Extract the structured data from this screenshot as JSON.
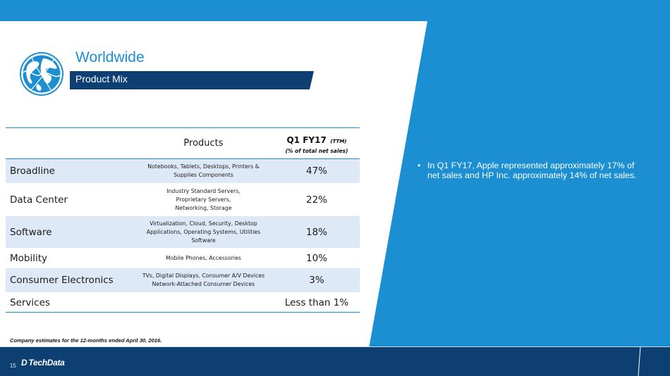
{
  "header": {
    "title": "Worldwide",
    "subtitle": "Product Mix"
  },
  "table": {
    "col_products": "Products",
    "col_q_main": "Q1 FY17",
    "col_q_ttm": "(TTM)",
    "col_q_sub": "(% of total net sales)",
    "rows": [
      {
        "segment": "Broadline",
        "products_lines": [
          "Notebooks, Tablets, Desktops, Printers &",
          "Supplies Components"
        ],
        "pct": "47%"
      },
      {
        "segment": "Data Center",
        "products_lines": [
          "Industry Standard Servers,",
          "Proprietary Servers,",
          "Networking, Storage"
        ],
        "pct": "22%"
      },
      {
        "segment": "Software",
        "products_lines": [
          "Virtualization, Cloud,  Security, Desktop",
          "Applications,  Operating Systems, Utilities",
          "Software"
        ],
        "pct": "18%"
      },
      {
        "segment": "Mobility",
        "products_lines": [
          "Mobile Phones, Accessories"
        ],
        "pct": "10%"
      },
      {
        "segment": "Consumer Electronics",
        "products_lines": [
          "TVs, Digital Displays, Consumer A/V Devices",
          "Network-Attached Consumer Devices"
        ],
        "pct": "3%"
      },
      {
        "segment": "Services",
        "products_lines": [
          ""
        ],
        "pct": "Less than 1%"
      }
    ]
  },
  "note": "Company estimates for the 12-months ended  April  30, 2016.",
  "bullet": {
    "marker": "•",
    "text": "In Q1 FY17, Apple represented approximately 17% of net sales and HP Inc. approximately 14% of net sales."
  },
  "footer": {
    "page_number": "15",
    "logo_text": "TechData",
    "logo_mark": "D"
  },
  "colors": {
    "accent_blue": "#1b8fd1",
    "navy": "#0d3f73",
    "row_shade": "#dde9f7"
  },
  "icons": {
    "globe": "globe-icon",
    "logo": "techdata-logo"
  }
}
